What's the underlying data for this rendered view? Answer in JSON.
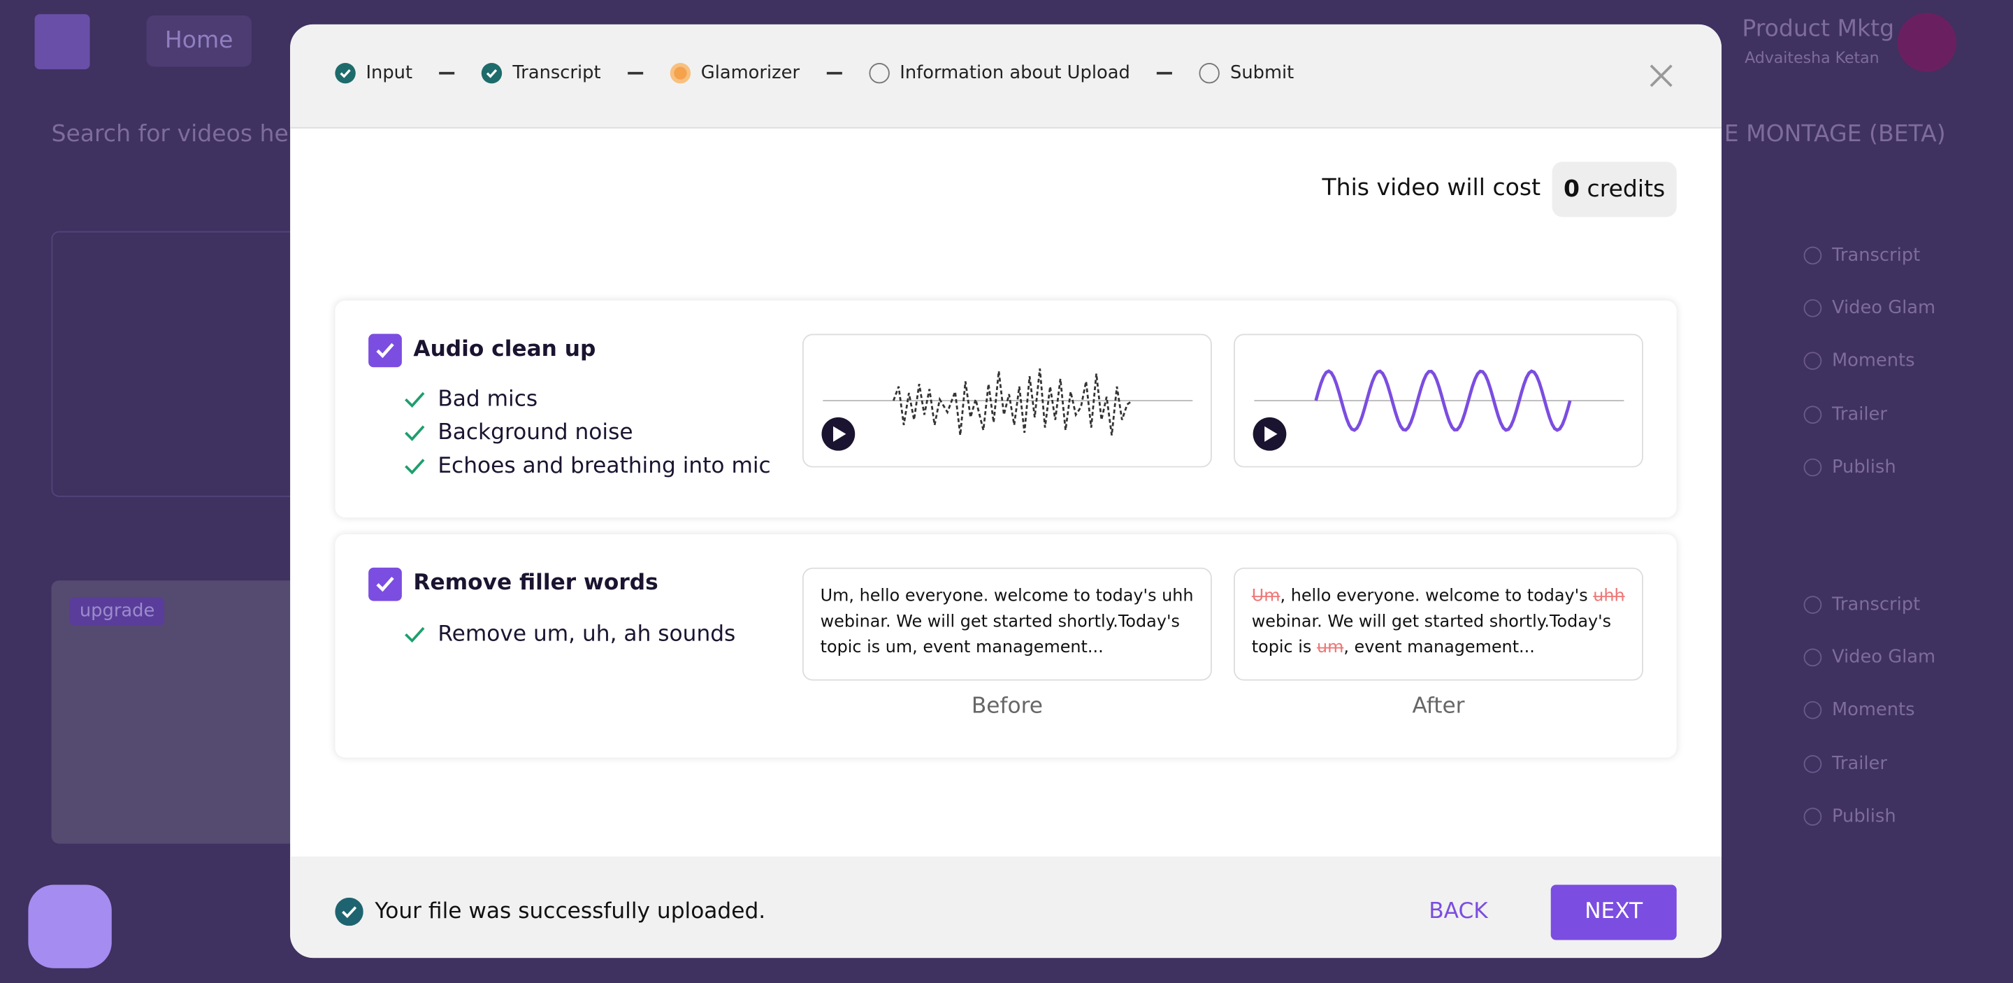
{
  "background": {
    "nav_home": "Home",
    "user_name": "Product Mktg",
    "user_sub": "Advaitesha Ketan",
    "search": "Search for videos here",
    "montage": "E MONTAGE (BETA)",
    "sidebar_a": [
      "Transcript",
      "Video Glam",
      "Moments",
      "Trailer",
      "Publish"
    ],
    "sidebar_b": [
      "Transcript",
      "Video Glam",
      "Moments",
      "Trailer",
      "Publish"
    ],
    "upgrade": "upgrade"
  },
  "modal": {
    "steps": [
      {
        "label": "Input",
        "state": "done"
      },
      {
        "label": "Transcript",
        "state": "done"
      },
      {
        "label": "Glamorizer",
        "state": "current"
      },
      {
        "label": "Information about Upload",
        "state": "todo"
      },
      {
        "label": "Submit",
        "state": "todo"
      }
    ],
    "cost_label": "This video will cost",
    "cost_value": "0",
    "cost_unit": "credits",
    "features": [
      {
        "title": "Audio clean up",
        "items": [
          "Bad mics",
          "Background noise",
          "Echoes and breathing into mic"
        ]
      },
      {
        "title": "Remove filler words",
        "items": [
          "Remove um, uh, ah sounds"
        ]
      }
    ],
    "before_text": "Um, hello everyone. welcome to today's uhh webinar. We will get started shortly.Today's topic is um, event management...",
    "after_parts": [
      {
        "text": "Um",
        "filler": true
      },
      {
        "text": ", hello everyone. welcome to today's ",
        "filler": false
      },
      {
        "text": "uhh",
        "filler": true
      },
      {
        "text": " webinar. We will get started shortly.Today's topic is ",
        "filler": false
      },
      {
        "text": "um",
        "filler": true
      },
      {
        "text": ", event management...",
        "filler": false
      }
    ],
    "before_label": "Before",
    "after_label": "After",
    "status": "Your file was successfully uploaded.",
    "back": "BACK",
    "next": "NEXT"
  }
}
